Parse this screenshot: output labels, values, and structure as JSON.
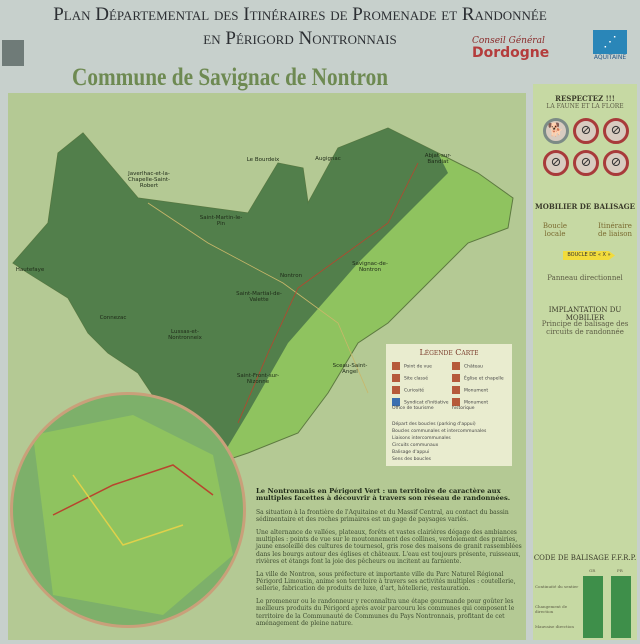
{
  "header": {
    "title_line1": "Plan Départemental des Itinéraires de Promenade et Randonnée",
    "title_line2": "en Périgord Nontronnais",
    "commune": "Commune de Savignac de Nontron",
    "logo_cg_line1": "Conseil Général",
    "logo_cg_line2": "Dordogne",
    "logo_region": "AQUITAINE"
  },
  "map": {
    "labels": [
      "Javerlhac-et-la-Chapelle-Saint-Robert",
      "Le Bourdeix",
      "Augignac",
      "Abjat-sur-Bandiat",
      "Saint-Martin-le-Pin",
      "Hautefaye",
      "Nontron",
      "Savignac-de-Nontron",
      "Saint-Martial-de-Valette",
      "Connezac",
      "Lussas-et-Nontronneix",
      "Saint-Front-sur-Nizonne",
      "Sceau-Saint-Angel"
    ],
    "colors": {
      "dark_land": "#4d7a4a",
      "light_land": "#8fc35f",
      "route": "#b8452e"
    }
  },
  "legend": {
    "title": "Légende Carte",
    "items": [
      "Point de vue",
      "Site classé",
      "Curiosité",
      "Syndicat d'initiative Office de tourisme",
      "Château",
      "Église et chapelle",
      "Monument",
      "Monument historique"
    ],
    "lines": [
      "Départ des boucles (parking d'appui)",
      "Boucles communales et intercommunales",
      "Liaisons intercommunales",
      "Circuits communaux",
      "Balisage d'appui",
      "Sens des boucles"
    ]
  },
  "description": {
    "lead": "Le Nontronnais en Périgord Vert : un territoire de caractère aux multiples facettes à découvrir à travers son réseau de randonnées.",
    "p1": "Sa situation à la frontière de l'Aquitaine et du Massif Central, au contact du bassin sédimentaire et des roches primaires est un gage de paysages variés.",
    "p2": "Une alternance de vallées, plateaux, forêts et vastes clairières dégage des ambiances multiples : points de vue sur le moutonnement des collines, verdoiement des prairies, jaune ensoleillé des cultures de tournesol, gris rose des maisons de granit rassemblées dans les bourgs autour des églises et châteaux. L'eau est toujours présente, ruisseaux, rivières et étangs font la joie des pêcheurs ou incitent au farniente.",
    "p3": "La ville de Nontron, sous préfecture et importante ville du Parc Naturel Régional Périgord Limousin, anime son territoire à travers ses activités multiples : coutellerie, sellerie, fabrication de produits de luxe, d'art, hôtellerie, restauration.",
    "p4": "Le promeneur ou le randonneur y reconnaîtra une étape gourmande pour goûter les meilleurs produits du Périgord après avoir parcouru les communes qui composent le territoire de la Communauté de Communes du Pays Nontronnais, profitant de cet aménagement de pleine nature."
  },
  "sidebar": {
    "respect_title": "RESPECTEZ !!!",
    "respect_sub": "LA FAUNE ET LA FLORE",
    "signs": [
      "dog-leash-icon",
      "no-fire-icon",
      "no-flower-picking-icon",
      "no-camping-icon",
      "no-vehicle-icon",
      "no-litter-icon"
    ],
    "mobilier_title": "MOBILIER DE BALISAGE",
    "boucle_locale": "Boucle locale",
    "itineraire_liaison": "Itinéraire de liaison",
    "boucle_sign": "BOUCLE DE « X »",
    "panneau": "Panneau directionnel",
    "implantation_title": "IMPLANTATION DU MOBILIER",
    "principe": "Principe de balisage des circuits de randonnée",
    "code_title": "CODE DE BALISAGE F.F.R.P.",
    "code_rows": [
      "Continuité du sentier",
      "Changement de direction",
      "Mauvaise direction"
    ],
    "code_cols": [
      "GR",
      "PR"
    ]
  }
}
